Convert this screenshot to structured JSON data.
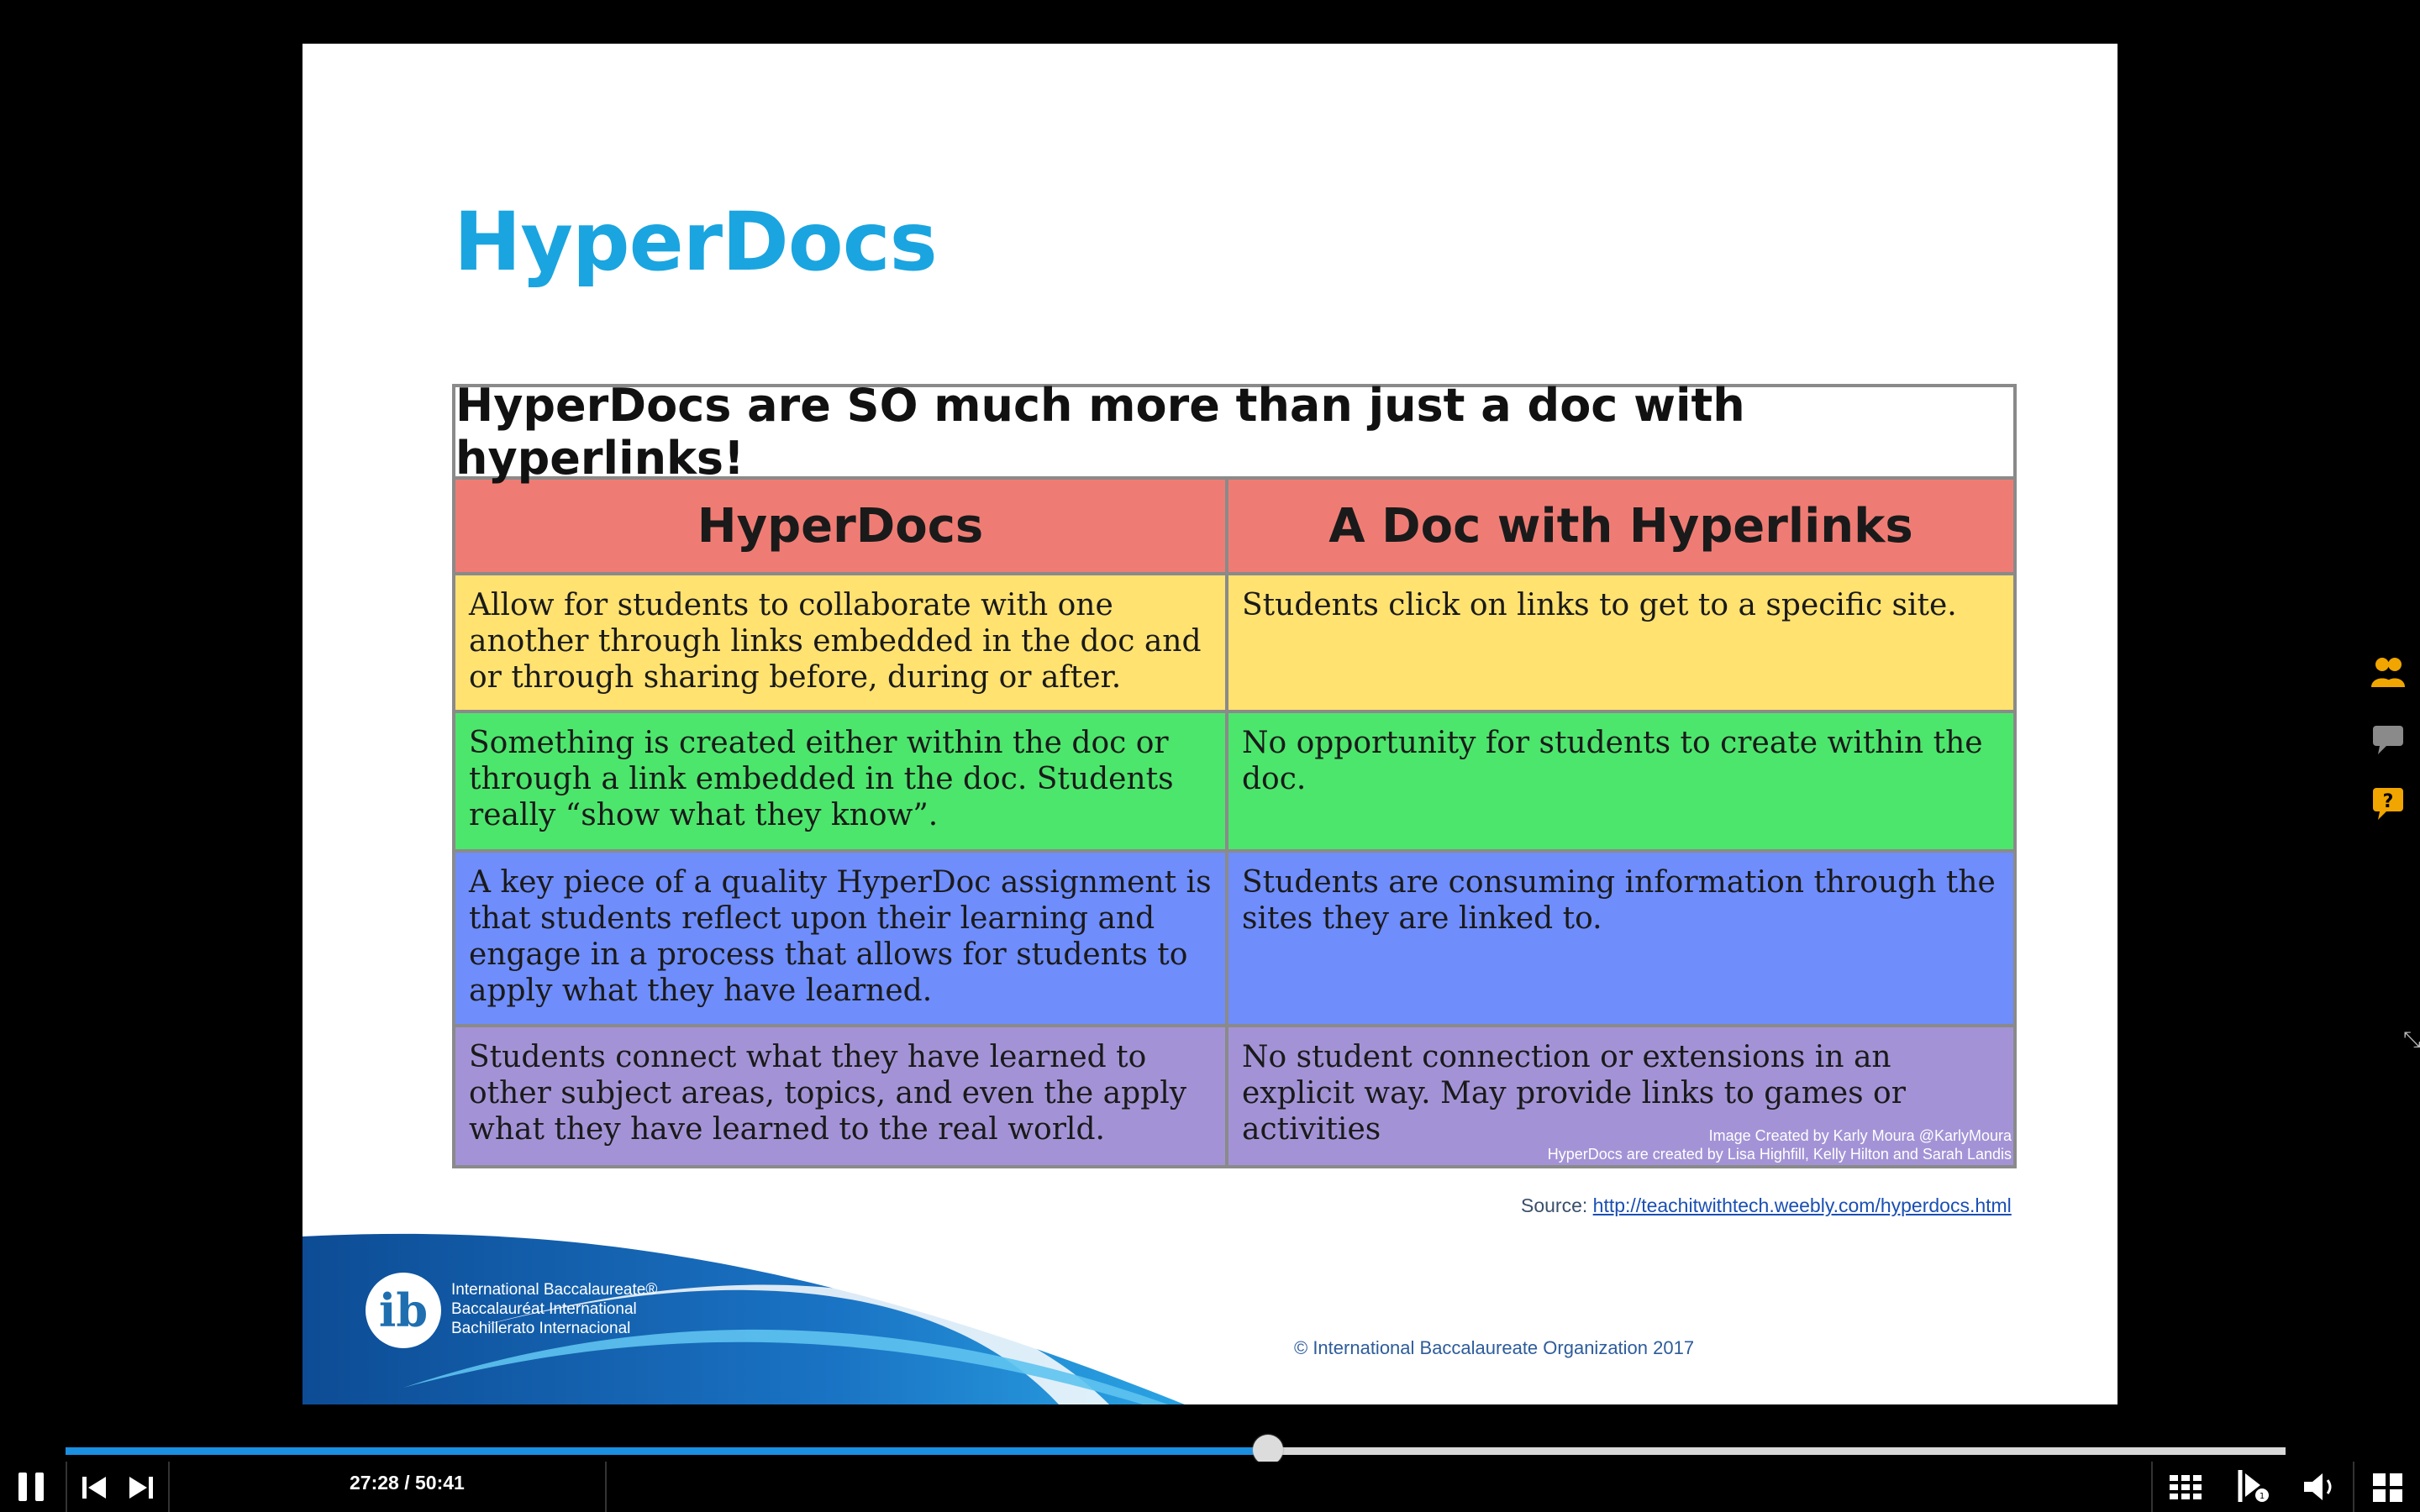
{
  "slide": {
    "title": "HyperDocs",
    "table": {
      "banner": "HyperDocs are SO much more than just a doc with hyperlinks!",
      "headers": [
        "HyperDocs",
        "A Doc with Hyperlinks"
      ],
      "header_color": "#ef7c74",
      "rows": [
        {
          "color": "#ffe270",
          "left": "Allow for students to collaborate with one another through links embedded in the doc and or through sharing before, during or after.",
          "right": "Students click on links to get to a specific site."
        },
        {
          "color": "#4ce66c",
          "left": "Something is created either within the doc or through a link embedded in the doc. Students really “show what they know”.",
          "right": "No opportunity for students to create within the doc."
        },
        {
          "color": "#6f8dfb",
          "left": "A key piece of a quality HyperDoc assignment is that students reflect upon their learning and engage in a process that allows for students to apply what they have learned.",
          "right": "Students are consuming information through the sites they are linked to."
        },
        {
          "color": "#a393d6",
          "left": "Students connect what they have learned to other subject areas, topics, and even the apply what they have learned to the real world.",
          "right": "No student connection or extensions in an explicit way. May provide links to games or activities"
        }
      ],
      "credit_line1": "Image Created by Karly Moura @KarlyMoura",
      "credit_line2": "HyperDocs are created by Lisa Highfill,  Kelly Hilton and Sarah Landis"
    },
    "source_label": "Source: ",
    "source_link": "http://teachitwithtech.weebly.com/hyperdocs.html",
    "ib": {
      "logo_letter": "ib",
      "line1": "International Baccalaureate®",
      "line2": "Baccalauréat International",
      "line3": "Bachillerato Internacional"
    },
    "copyright": "© International Baccalaureate Organization 2017"
  },
  "side_panel": {
    "icons": [
      "participants-icon",
      "chat-icon",
      "question-icon"
    ],
    "accent_color": "#f0a500"
  },
  "player": {
    "time": "27:28 / 50:41",
    "progress_fraction": 0.5416,
    "accent_color": "#1b8fe0"
  }
}
